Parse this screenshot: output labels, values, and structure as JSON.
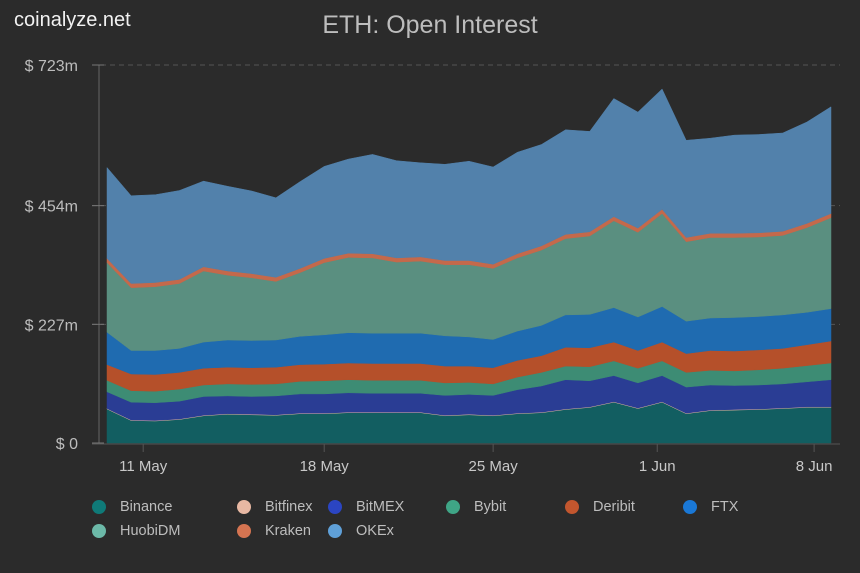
{
  "brand": "coinalyze.net",
  "chart_data": {
    "type": "area",
    "stacked": true,
    "title": "ETH: Open Interest",
    "xlabel": "",
    "ylabel": "",
    "ylim": [
      0,
      723
    ],
    "yticks": [
      0,
      227,
      454,
      723
    ],
    "ytick_labels": [
      "$ 0",
      "$ 227m",
      "$ 454m",
      "$ 723m"
    ],
    "grid": "horizontal-dashed",
    "x_start_day": 9,
    "x_dates_note": "daily from 9 May to 8 Jun",
    "xticks": [
      {
        "label": "11 May",
        "day_index": 1.5
      },
      {
        "label": "18 May",
        "day_index": 9
      },
      {
        "label": "25 May",
        "day_index": 16
      },
      {
        "label": "1 Jun",
        "day_index": 22.8
      },
      {
        "label": "8 Jun",
        "day_index": 29.3
      }
    ],
    "legend_position": "bottom",
    "series": [
      {
        "name": "Binance",
        "color": "#125e61",
        "values": [
          65,
          43,
          42,
          45,
          52,
          55,
          54,
          53,
          56,
          56,
          58,
          58,
          58,
          58,
          52,
          54,
          52,
          56,
          58,
          64,
          68,
          78,
          66,
          78,
          56,
          62,
          63,
          64,
          66,
          68,
          68
        ]
      },
      {
        "name": "Bitfinex",
        "color": "#e2b4a0",
        "values": [
          1,
          1,
          1,
          1,
          1,
          1,
          1,
          1,
          1,
          1,
          1,
          1,
          1,
          1,
          1,
          1,
          1,
          1,
          1,
          1,
          1,
          1,
          1,
          1,
          1,
          1,
          1,
          1,
          1,
          1,
          1
        ]
      },
      {
        "name": "BitMEX",
        "color": "#2a3d94",
        "values": [
          32,
          34,
          34,
          34,
          36,
          34,
          34,
          36,
          37,
          37,
          37,
          36,
          36,
          36,
          38,
          38,
          38,
          45,
          50,
          56,
          50,
          50,
          48,
          50,
          50,
          48,
          46,
          46,
          46,
          48,
          52
        ]
      },
      {
        "name": "Bybit",
        "color": "#3d8c74",
        "values": [
          22,
          22,
          22,
          23,
          22,
          23,
          23,
          23,
          24,
          25,
          25,
          25,
          25,
          25,
          24,
          23,
          22,
          24,
          26,
          26,
          27,
          28,
          28,
          28,
          28,
          28,
          28,
          29,
          30,
          31,
          32
        ]
      },
      {
        "name": "Deribit",
        "color": "#b5502a",
        "values": [
          30,
          32,
          32,
          32,
          32,
          32,
          32,
          32,
          32,
          32,
          32,
          32,
          32,
          32,
          32,
          31,
          31,
          32,
          32,
          36,
          36,
          36,
          34,
          36,
          36,
          38,
          38,
          38,
          38,
          40,
          42
        ]
      },
      {
        "name": "FTX",
        "color": "#1f6bb0",
        "values": [
          62,
          45,
          46,
          46,
          50,
          52,
          52,
          52,
          54,
          56,
          58,
          58,
          58,
          58,
          58,
          56,
          54,
          56,
          58,
          62,
          64,
          66,
          64,
          68,
          62,
          62,
          64,
          64,
          64,
          62,
          62
        ]
      },
      {
        "name": "HuobiDM",
        "color": "#5a8f80",
        "values": [
          133,
          120,
          122,
          124,
          136,
          124,
          120,
          112,
          122,
          138,
          144,
          144,
          136,
          138,
          136,
          138,
          136,
          140,
          144,
          146,
          150,
          166,
          162,
          178,
          152,
          154,
          153,
          152,
          152,
          162,
          174
        ]
      },
      {
        "name": "Kraken",
        "color": "#c4694b",
        "values": [
          8,
          8,
          8,
          8,
          8,
          8,
          8,
          8,
          8,
          8,
          8,
          8,
          8,
          8,
          8,
          8,
          8,
          8,
          8,
          8,
          8,
          8,
          8,
          8,
          8,
          8,
          8,
          8,
          8,
          8,
          8
        ]
      },
      {
        "name": "OKEx",
        "color": "#5281ab",
        "values": [
          174,
          168,
          168,
          170,
          164,
          162,
          158,
          152,
          166,
          176,
          180,
          190,
          186,
          180,
          184,
          190,
          186,
          194,
          194,
          200,
          192,
          226,
          222,
          230,
          186,
          182,
          188,
          188,
          188,
          194,
          204
        ]
      }
    ]
  },
  "legend": [
    {
      "label": "Binance",
      "color": "#0f7a78"
    },
    {
      "label": "Bitfinex",
      "color": "#e8b8a3"
    },
    {
      "label": "BitMEX",
      "color": "#2b45c2"
    },
    {
      "label": "Bybit",
      "color": "#3fa586"
    },
    {
      "label": "Deribit",
      "color": "#c2562e"
    },
    {
      "label": "FTX",
      "color": "#1a78d6"
    },
    {
      "label": "HuobiDM",
      "color": "#6cb9a8"
    },
    {
      "label": "Kraken",
      "color": "#d57451"
    },
    {
      "label": "OKEx",
      "color": "#5fa0d8"
    }
  ]
}
